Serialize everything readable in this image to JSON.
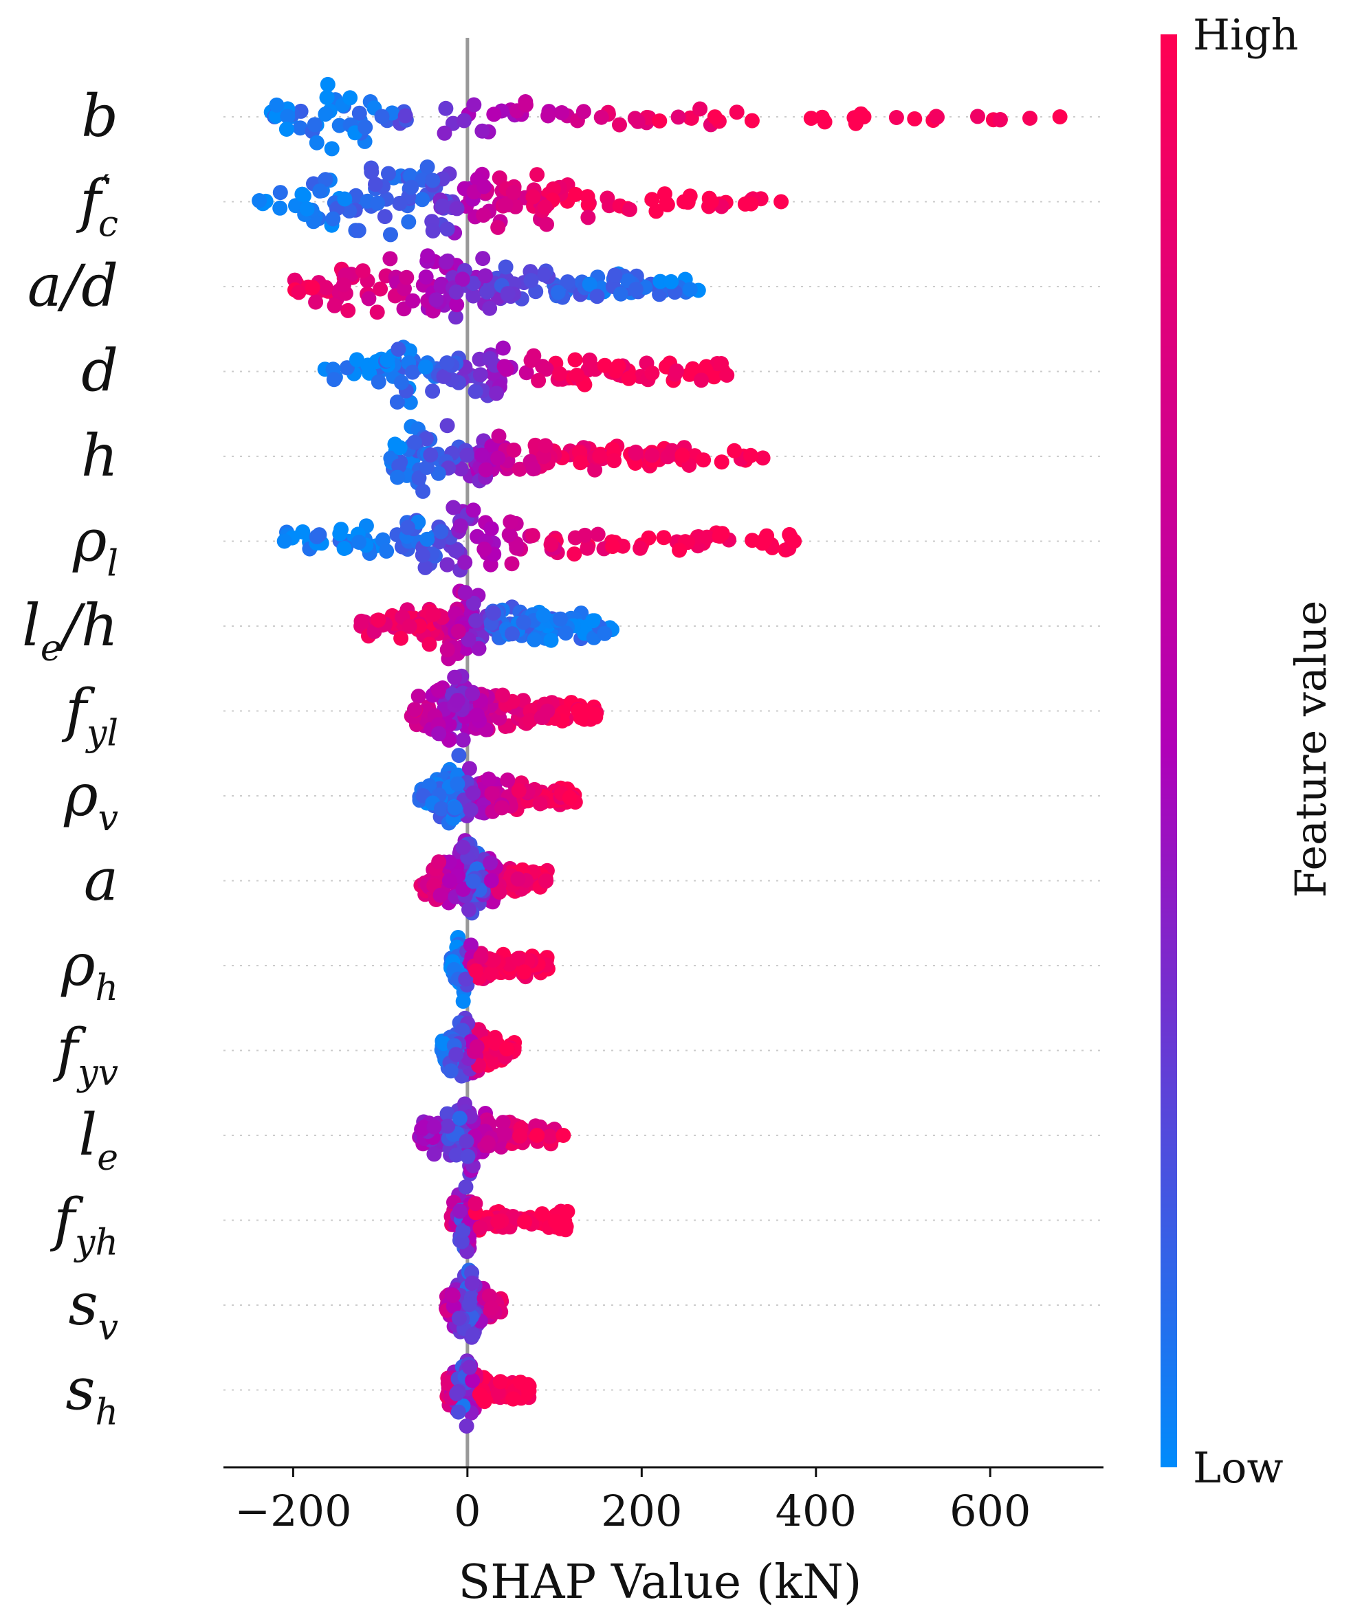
{
  "chart_data": {
    "type": "scatter",
    "subtype": "shap-beeswarm",
    "xlabel": "SHAP Value (kN)",
    "ylabel": "",
    "xlim": [
      -280,
      730
    ],
    "xticks": [
      -200,
      0,
      200,
      400,
      600
    ],
    "xtick_labels": [
      "−200",
      "0",
      "200",
      "400",
      "600"
    ],
    "zero_line": 0,
    "colorbar": {
      "label": "Feature value",
      "high_label": "High",
      "low_label": "Low",
      "low_color": "#008bfb",
      "high_color": "#ff0052"
    },
    "features": [
      {
        "name": "b",
        "base": "b",
        "sub": "",
        "prime": false,
        "min": -230,
        "max": 680,
        "outliers": [
          {
            "x": 455,
            "v": 1
          },
          {
            "x": 680,
            "v": 1
          }
        ],
        "density": [
          [
            -230,
            0.35
          ],
          [
            -150,
            1.0
          ],
          [
            -80,
            0.55
          ],
          [
            0,
            0.45
          ],
          [
            80,
            0.45
          ],
          [
            200,
            0.3
          ],
          [
            300,
            0.25
          ],
          [
            390,
            0.2
          ]
        ],
        "color": [
          [
            -230,
            0.05
          ],
          [
            -100,
            0.1
          ],
          [
            0,
            0.4
          ],
          [
            100,
            0.65
          ],
          [
            200,
            0.9
          ],
          [
            400,
            1
          ]
        ]
      },
      {
        "name": "f'c",
        "base": "f",
        "sub": "c",
        "prime": true,
        "min": -240,
        "max": 360,
        "outliers": [
          {
            "x": 280,
            "v": 1
          },
          {
            "x": 360,
            "v": 1
          }
        ],
        "density": [
          [
            -240,
            0.2
          ],
          [
            -180,
            0.6
          ],
          [
            -90,
            1.0
          ],
          [
            0,
            0.7
          ],
          [
            50,
            0.9
          ],
          [
            90,
            0.75
          ],
          [
            160,
            0.35
          ],
          [
            240,
            0.2
          ]
        ],
        "color": [
          [
            -240,
            0.02
          ],
          [
            -50,
            0.15
          ],
          [
            30,
            0.7
          ],
          [
            100,
            0.9
          ],
          [
            240,
            1
          ]
        ]
      },
      {
        "name": "a/d",
        "base": "a/d",
        "sub": "",
        "prime": false,
        "min": -200,
        "max": 270,
        "outliers": [],
        "density": [
          [
            -200,
            0.3
          ],
          [
            -140,
            0.7
          ],
          [
            -80,
            0.7
          ],
          [
            -10,
            1.0
          ],
          [
            40,
            0.6
          ],
          [
            100,
            0.5
          ],
          [
            180,
            0.35
          ],
          [
            270,
            0.2
          ]
        ],
        "color": [
          [
            -200,
            0.95
          ],
          [
            -100,
            0.75
          ],
          [
            -20,
            0.45
          ],
          [
            60,
            0.2
          ],
          [
            270,
            0.03
          ]
        ]
      },
      {
        "name": "d",
        "base": "d",
        "sub": "",
        "prime": false,
        "min": -165,
        "max": 325,
        "outliers": [],
        "density": [
          [
            -165,
            0.2
          ],
          [
            -110,
            0.45
          ],
          [
            -60,
            1.0
          ],
          [
            -30,
            0.3
          ],
          [
            0,
            0.5
          ],
          [
            35,
            1.0
          ],
          [
            80,
            0.4
          ],
          [
            180,
            0.35
          ],
          [
            320,
            0.2
          ]
        ],
        "color": [
          [
            -165,
            0.03
          ],
          [
            -40,
            0.12
          ],
          [
            20,
            0.35
          ],
          [
            60,
            0.6
          ],
          [
            100,
            0.95
          ],
          [
            325,
            1
          ]
        ]
      },
      {
        "name": "h",
        "base": "h",
        "sub": "",
        "prime": false,
        "min": -95,
        "max": 340,
        "outliers": [],
        "density": [
          [
            -95,
            0.3
          ],
          [
            -50,
            1.0
          ],
          [
            -10,
            0.9
          ],
          [
            40,
            0.45
          ],
          [
            100,
            0.35
          ],
          [
            200,
            0.35
          ],
          [
            300,
            0.25
          ],
          [
            340,
            0.15
          ]
        ],
        "color": [
          [
            -95,
            0.05
          ],
          [
            -20,
            0.2
          ],
          [
            40,
            0.6
          ],
          [
            100,
            0.9
          ],
          [
            340,
            1
          ]
        ]
      },
      {
        "name": "ρl",
        "base": "ρ",
        "sub": "l",
        "prime": false,
        "min": -210,
        "max": 375,
        "outliers": [
          {
            "x": -210,
            "v": 0.02
          },
          {
            "x": 340,
            "v": 1
          },
          {
            "x": 375,
            "v": 1
          }
        ],
        "density": [
          [
            -180,
            0.3
          ],
          [
            -100,
            0.5
          ],
          [
            -40,
            0.8
          ],
          [
            30,
            1.0
          ],
          [
            70,
            0.45
          ],
          [
            130,
            0.3
          ],
          [
            210,
            0.25
          ]
        ],
        "color": [
          [
            -180,
            0.02
          ],
          [
            -40,
            0.15
          ],
          [
            20,
            0.5
          ],
          [
            60,
            0.65
          ],
          [
            100,
            0.85
          ],
          [
            210,
            1
          ]
        ]
      },
      {
        "name": "le/h",
        "base": "l",
        "sub": "e",
        "suffix": "/h",
        "prime": false,
        "min": -125,
        "max": 170,
        "outliers": [],
        "density": [
          [
            -125,
            0.35
          ],
          [
            -60,
            0.55
          ],
          [
            0,
            1.0
          ],
          [
            40,
            0.5
          ],
          [
            100,
            0.4
          ],
          [
            170,
            0.3
          ]
        ],
        "color": [
          [
            -125,
            0.85
          ],
          [
            -40,
            0.9
          ],
          [
            0,
            0.5
          ],
          [
            30,
            0.15
          ],
          [
            170,
            0.02
          ]
        ]
      },
      {
        "name": "fyl",
        "base": "f",
        "sub": "yl",
        "prime": false,
        "min": -65,
        "max": 150,
        "outliers": [],
        "density": [
          [
            -65,
            0.3
          ],
          [
            -10,
            1.0
          ],
          [
            30,
            0.5
          ],
          [
            80,
            0.35
          ],
          [
            150,
            0.25
          ]
        ],
        "color": [
          [
            -65,
            0.75
          ],
          [
            -10,
            0.35
          ],
          [
            40,
            0.8
          ],
          [
            150,
            1
          ]
        ]
      },
      {
        "name": "ρv",
        "base": "ρ",
        "sub": "v",
        "prime": false,
        "min": -55,
        "max": 130,
        "outliers": [],
        "density": [
          [
            -55,
            0.25
          ],
          [
            -12,
            1.0
          ],
          [
            20,
            0.5
          ],
          [
            60,
            0.35
          ],
          [
            130,
            0.2
          ]
        ],
        "color": [
          [
            -55,
            0.05
          ],
          [
            -10,
            0.15
          ],
          [
            20,
            0.55
          ],
          [
            60,
            0.85
          ],
          [
            130,
            1
          ]
        ]
      },
      {
        "name": "a",
        "base": "a",
        "sub": "",
        "prime": false,
        "min": -55,
        "max": 95,
        "outliers": [],
        "density": [
          [
            -55,
            0.3
          ],
          [
            0,
            1.0
          ],
          [
            40,
            0.4
          ],
          [
            95,
            0.25
          ]
        ],
        "color": [
          [
            -55,
            0.85
          ],
          [
            -10,
            0.5
          ],
          [
            10,
            0.15
          ],
          [
            40,
            0.85
          ],
          [
            95,
            1
          ]
        ]
      },
      {
        "name": "ρh",
        "base": "ρ",
        "sub": "h",
        "prime": false,
        "min": -20,
        "max": 95,
        "outliers": [],
        "density": [
          [
            -20,
            0.3
          ],
          [
            -7,
            1.0
          ],
          [
            10,
            0.35
          ],
          [
            95,
            0.3
          ]
        ],
        "color": [
          [
            -20,
            0.02
          ],
          [
            -5,
            0.05
          ],
          [
            10,
            0.9
          ],
          [
            95,
            1
          ]
        ]
      },
      {
        "name": "fyv",
        "base": "f",
        "sub": "yv",
        "prime": false,
        "min": -30,
        "max": 55,
        "outliers": [],
        "density": [
          [
            -30,
            0.3
          ],
          [
            0,
            1.0
          ],
          [
            20,
            0.4
          ],
          [
            55,
            0.25
          ]
        ],
        "color": [
          [
            -30,
            0.05
          ],
          [
            0,
            0.3
          ],
          [
            15,
            0.9
          ],
          [
            55,
            1
          ]
        ]
      },
      {
        "name": "le",
        "base": "l",
        "sub": "e",
        "prime": false,
        "min": -55,
        "max": 110,
        "outliers": [
          {
            "x": 80,
            "v": 1
          },
          {
            "x": 110,
            "v": 1
          }
        ],
        "density": [
          [
            -55,
            0.35
          ],
          [
            0,
            1.0
          ],
          [
            30,
            0.45
          ],
          [
            55,
            0.3
          ]
        ],
        "color": [
          [
            -55,
            0.5
          ],
          [
            -10,
            0.2
          ],
          [
            20,
            0.6
          ],
          [
            55,
            0.85
          ]
        ]
      },
      {
        "name": "fyh",
        "base": "f",
        "sub": "yh",
        "prime": false,
        "min": -20,
        "max": 115,
        "outliers": [],
        "density": [
          [
            -20,
            0.3
          ],
          [
            -3,
            1.0
          ],
          [
            15,
            0.35
          ],
          [
            50,
            0.25
          ],
          [
            65,
            0.1
          ],
          [
            115,
            0.3
          ]
        ],
        "color": [
          [
            -20,
            0.9
          ],
          [
            -5,
            0.15
          ],
          [
            10,
            0.95
          ],
          [
            115,
            1
          ]
        ]
      },
      {
        "name": "sv",
        "base": "s",
        "sub": "v",
        "prime": false,
        "min": -25,
        "max": 40,
        "outliers": [],
        "density": [
          [
            -25,
            0.3
          ],
          [
            0,
            1.0
          ],
          [
            20,
            0.35
          ],
          [
            40,
            0.2
          ]
        ],
        "color": [
          [
            -25,
            0.7
          ],
          [
            0,
            0.15
          ],
          [
            20,
            0.6
          ],
          [
            40,
            0.9
          ]
        ]
      },
      {
        "name": "sh",
        "base": "s",
        "sub": "h",
        "prime": false,
        "min": -25,
        "max": 75,
        "outliers": [
          {
            "x": 70,
            "v": 1
          }
        ],
        "density": [
          [
            -25,
            0.3
          ],
          [
            0,
            1.0
          ],
          [
            20,
            0.35
          ],
          [
            45,
            0.25
          ]
        ],
        "color": [
          [
            -25,
            0.9
          ],
          [
            -5,
            0.1
          ],
          [
            15,
            0.95
          ],
          [
            45,
            1
          ]
        ]
      }
    ]
  }
}
